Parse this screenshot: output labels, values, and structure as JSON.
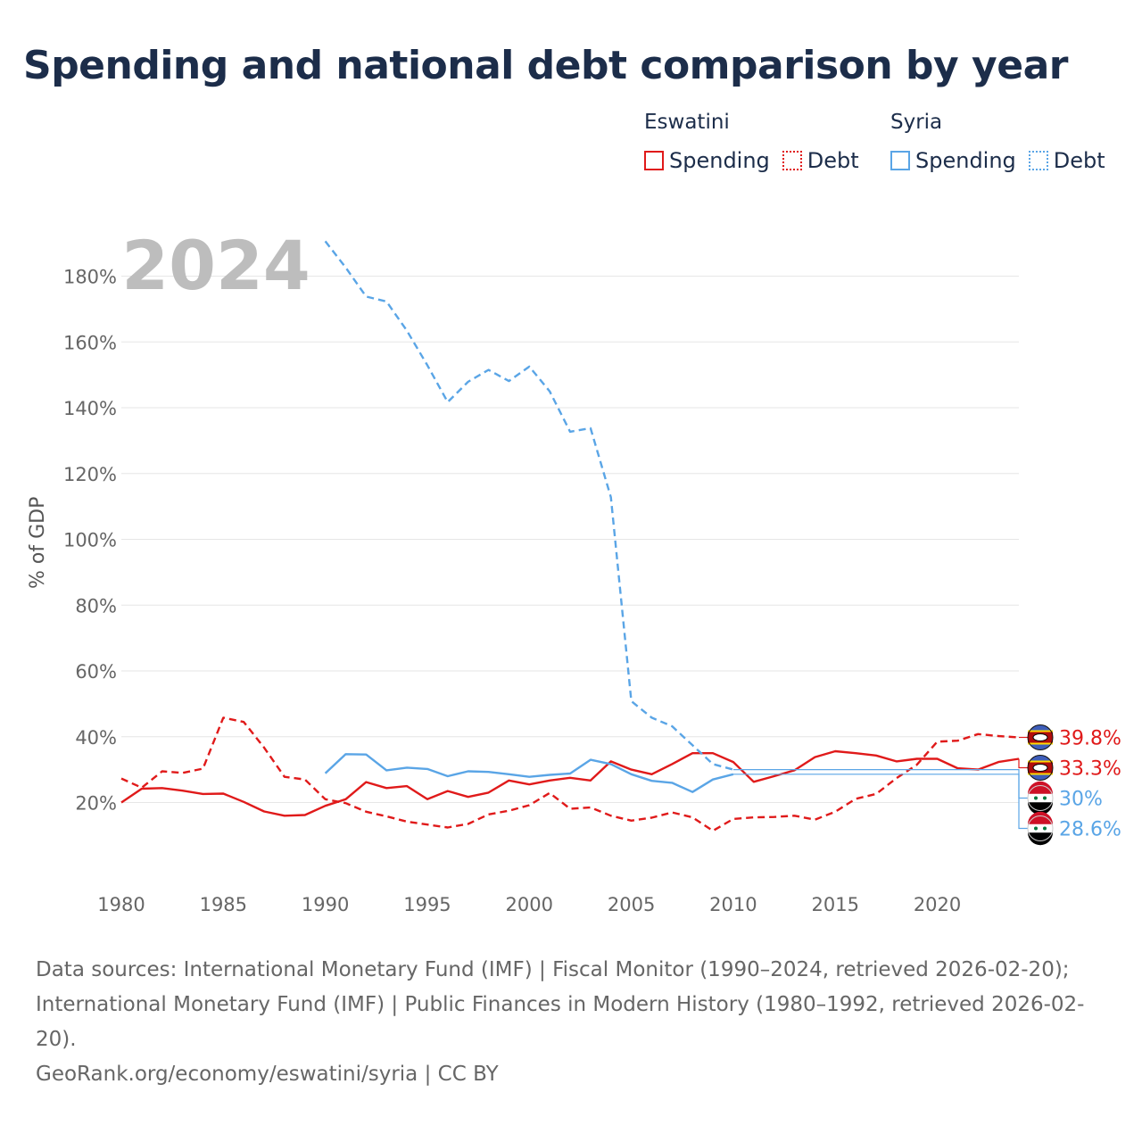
{
  "title": "Spending and national debt comparison by year",
  "legend": {
    "groups": [
      {
        "name": "Eswatini",
        "spending": "Spending",
        "debt": "Debt"
      },
      {
        "name": "Syria",
        "spending": "Spending",
        "debt": "Debt"
      }
    ]
  },
  "colors": {
    "eswatini": "#e01a1a",
    "syria": "#5aa5e6",
    "text": "#1c2d4a"
  },
  "chart_data": {
    "type": "line",
    "title": "Spending and national debt comparison by year",
    "year_label": "2024",
    "ylabel": "% of GDP",
    "xlabel": "",
    "xlim": [
      1980,
      2024
    ],
    "ylim": [
      0,
      190
    ],
    "x_ticks": [
      1980,
      1985,
      1990,
      1995,
      2000,
      2005,
      2010,
      2015,
      2020
    ],
    "y_ticks": [
      20,
      40,
      60,
      80,
      100,
      120,
      140,
      160,
      180
    ],
    "y_tick_labels": [
      "20%",
      "40%",
      "60%",
      "80%",
      "100%",
      "120%",
      "140%",
      "160%",
      "180%"
    ],
    "grid": true,
    "series": [
      {
        "name": "Eswatini Spending",
        "country": "eswatini",
        "style": "solid",
        "x0": 1980,
        "values": [
          20,
          24.2,
          24.4,
          23.6,
          22.6,
          22.7,
          20.2,
          17.3,
          16,
          16.2,
          19,
          21,
          26.2,
          24.4,
          25,
          21,
          23.5,
          21.7,
          23,
          26.7,
          25.5,
          26.7,
          27.5,
          26.7,
          32.5,
          30,
          28.6,
          31.7,
          35,
          35,
          32.3,
          26.3,
          28,
          29.8,
          33.8,
          35.6,
          35,
          34.3,
          32.5,
          33.3,
          33.3,
          30.4,
          30,
          32.3,
          33.3
        ],
        "end_label": "33.3%"
      },
      {
        "name": "Eswatini Debt",
        "country": "eswatini",
        "style": "dashed",
        "x0": 1980,
        "values": [
          27.3,
          24.5,
          29.5,
          29,
          30.3,
          45.8,
          44.5,
          36.7,
          27.8,
          27,
          21,
          19.8,
          17.2,
          15.8,
          14.2,
          13.3,
          12.4,
          13.5,
          16.4,
          17.5,
          19.2,
          22.9,
          18.1,
          18.5,
          16,
          14.5,
          15.4,
          17,
          15.5,
          11.4,
          15,
          15.5,
          15.6,
          16,
          14.8,
          17.2,
          21.1,
          22.6,
          27.4,
          31.5,
          38.5,
          38.8,
          40.8,
          40.2,
          39.8
        ],
        "end_label": "39.8%"
      },
      {
        "name": "Syria Spending",
        "country": "syria",
        "style": "solid",
        "x0": 1990,
        "values": [
          28.9,
          34.7,
          34.6,
          29.8,
          30.6,
          30.2,
          28,
          29.5,
          29.3,
          28.6,
          27.8,
          28.4,
          28.8,
          33,
          31.7,
          28.6,
          26.6,
          26,
          23.2,
          27,
          28.6
        ],
        "end_label": "28.6%"
      },
      {
        "name": "Syria Debt",
        "country": "syria",
        "style": "dashed",
        "x0": 1990,
        "values": [
          190.6,
          182.6,
          173.8,
          172.3,
          163.4,
          152.9,
          141.7,
          147.9,
          151.5,
          148.1,
          152.5,
          145,
          132.7,
          133.8,
          112.8,
          50.8,
          45.8,
          43.2,
          37.4,
          31.7,
          30
        ],
        "end_label": "30%"
      }
    ]
  },
  "footer": {
    "sources": "Data sources: International Monetary Fund (IMF) | Fiscal Monitor (1990–2024, retrieved 2026-02-20); International Monetary Fund (IMF) | Public Finances in Modern History (1980–1992, retrieved 2026-02-20).",
    "credit": "GeoRank.org/economy/eswatini/syria | CC BY"
  }
}
